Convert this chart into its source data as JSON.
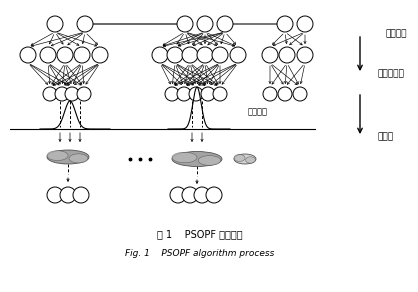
{
  "title_cn": "图 1    PSOPF 算法过程",
  "title_en": "Fig. 1    PSOPF algorithm process",
  "label_predict": "预测分布",
  "label_pso": "粒子群优化",
  "label_resample": "重采样",
  "label_likelihood": "似然分布",
  "bg_color": "#ffffff",
  "figsize": [
    4.18,
    2.92
  ],
  "dpi": 100
}
